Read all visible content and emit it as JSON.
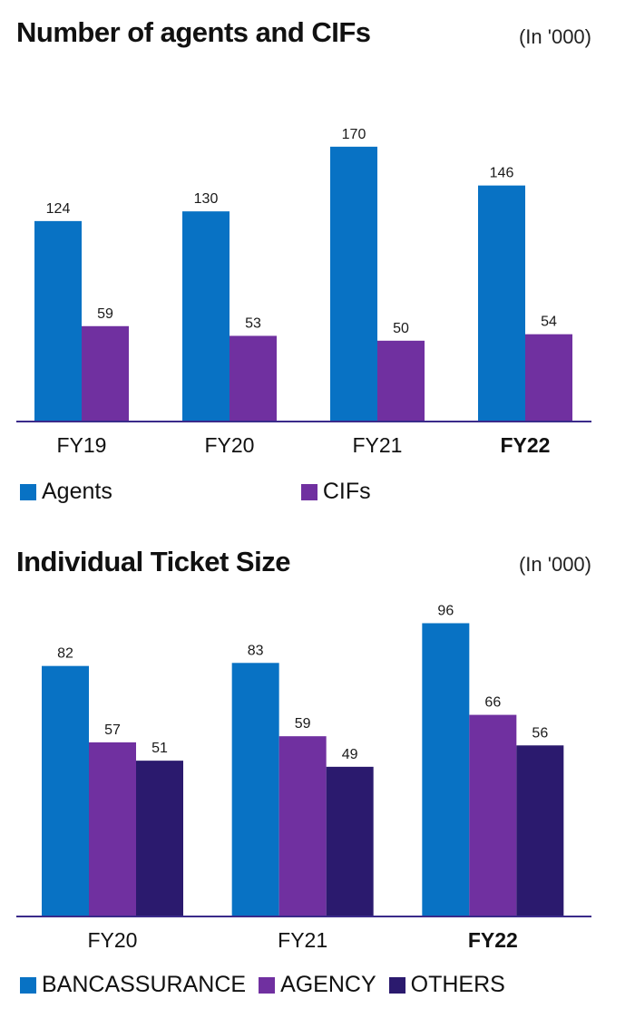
{
  "chart_data": [
    {
      "type": "bar",
      "title": "Number of agents and CIFs",
      "unit_note": "(In '000)",
      "categories": [
        "FY19",
        "FY20",
        "FY21",
        "FY22"
      ],
      "highlight_category": "FY22",
      "series": [
        {
          "name": "Agents",
          "values": [
            124,
            130,
            170,
            146
          ],
          "color": "#0872c4"
        },
        {
          "name": "CIFs",
          "values": [
            59,
            53,
            50,
            54
          ],
          "color": "#7030a0"
        }
      ],
      "ylim": [
        0,
        180
      ],
      "grid": false,
      "legend_position": "bottom-left"
    },
    {
      "type": "bar",
      "title": "Individual Ticket Size",
      "unit_note": "(In '000)",
      "categories": [
        "FY20",
        "FY21",
        "FY22"
      ],
      "highlight_category": "FY22",
      "series": [
        {
          "name": "BANCASSURANCE",
          "values": [
            82,
            83,
            96
          ],
          "color": "#0872c4"
        },
        {
          "name": "AGENCY",
          "values": [
            57,
            59,
            66
          ],
          "color": "#7030a0"
        },
        {
          "name": "OTHERS",
          "values": [
            51,
            49,
            56
          ],
          "color": "#2b1a6e"
        }
      ],
      "ylim": [
        0,
        100
      ],
      "grid": false,
      "legend_position": "bottom-left"
    }
  ],
  "axis_color": "#3a2a8a"
}
